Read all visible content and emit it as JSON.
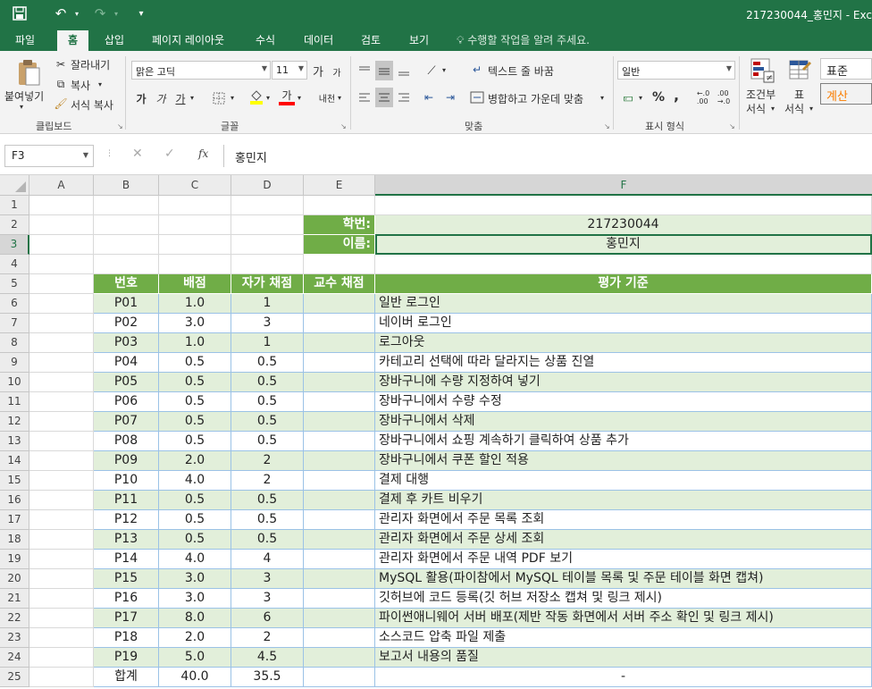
{
  "title_bar": {
    "doc_title": "217230044_홍민지 - Exc",
    "undo_label": "↶",
    "redo_label": "↷",
    "save_label": "💾",
    "customize_label": "▾"
  },
  "tabs": [
    "파일",
    "홈",
    "삽입",
    "페이지 레이아웃",
    "수식",
    "데이터",
    "검토",
    "보기"
  ],
  "tell_me": "수행할 작업을 알려 주세요.",
  "ribbon": {
    "clipboard": {
      "paste_label": "붙여넣기",
      "cut_label": "잘라내기",
      "copy_label": "복사",
      "format_painter_label": "서식 복사",
      "group_label": "클립보드"
    },
    "font": {
      "font_name": "맑은 고딕",
      "font_size": "11",
      "grow_label": "가",
      "shrink_label": "가",
      "bold_label": "가",
      "italic_label": "가",
      "underline_label": "가",
      "font_color_label": "가",
      "phonetic_label": "내천",
      "group_label": "글꼴"
    },
    "alignment": {
      "wrap_text_label": "텍스트 줄 바꿈",
      "merge_center_label": "병합하고 가운데 맞춤",
      "group_label": "맞춤"
    },
    "number": {
      "format_value": "일반",
      "percent_label": "%",
      "comma_label": ",",
      "group_label": "표시 형식"
    },
    "styles": {
      "conditional_label_1": "조건부",
      "conditional_label_2": "서식",
      "table_label_1": "표",
      "table_label_2": "서식",
      "normal_label": "표준",
      "calc_label": "계산"
    }
  },
  "formula_bar": {
    "name_box": "F3",
    "cancel_label": "✕",
    "enter_label": "✓",
    "fx_label": "fx",
    "formula_value": "홍민지"
  },
  "sheet": {
    "col_headers": [
      "A",
      "B",
      "C",
      "D",
      "E",
      "F"
    ],
    "row_numbers": [
      "1",
      "2",
      "3",
      "4",
      "5",
      "6",
      "7",
      "8",
      "9",
      "10",
      "11",
      "12",
      "13",
      "14",
      "15",
      "16",
      "17",
      "18",
      "19",
      "20",
      "21",
      "22",
      "23",
      "24",
      "25"
    ],
    "student_id_label": "학번:",
    "student_id_value": "217230044",
    "name_label": "이름:",
    "name_value": "홍민지",
    "table_headers": [
      "번호",
      "배점",
      "자가 채점",
      "교수 채점",
      "평가 기준"
    ],
    "rows": [
      [
        "P01",
        "1.0",
        "1",
        "",
        "일반 로그인"
      ],
      [
        "P02",
        "3.0",
        "3",
        "",
        "네이버 로그인"
      ],
      [
        "P03",
        "1.0",
        "1",
        "",
        "로그아웃"
      ],
      [
        "P04",
        "0.5",
        "0.5",
        "",
        "카테고리 선택에 따라 달라지는 상품 진열"
      ],
      [
        "P05",
        "0.5",
        "0.5",
        "",
        "장바구니에 수량 지정하여 넣기"
      ],
      [
        "P06",
        "0.5",
        "0.5",
        "",
        "장바구니에서 수량 수정"
      ],
      [
        "P07",
        "0.5",
        "0.5",
        "",
        "장바구니에서 삭제"
      ],
      [
        "P08",
        "0.5",
        "0.5",
        "",
        "장바구니에서 쇼핑 계속하기 클릭하여 상품 추가"
      ],
      [
        "P09",
        "2.0",
        "2",
        "",
        "장바구니에서 쿠폰 할인 적용"
      ],
      [
        "P10",
        "4.0",
        "2",
        "",
        "결제 대행"
      ],
      [
        "P11",
        "0.5",
        "0.5",
        "",
        "결제 후 카트 비우기"
      ],
      [
        "P12",
        "0.5",
        "0.5",
        "",
        "관리자 화면에서 주문 목록 조회"
      ],
      [
        "P13",
        "0.5",
        "0.5",
        "",
        "관리자 화면에서 주문 상세 조회"
      ],
      [
        "P14",
        "4.0",
        "4",
        "",
        "관리자 화면에서 주문 내역 PDF 보기"
      ],
      [
        "P15",
        "3.0",
        "3",
        "",
        "MySQL 활용(파이참에서 MySQL 테이블 목록 및 주문 테이블 화면 캡쳐)"
      ],
      [
        "P16",
        "3.0",
        "3",
        "",
        "깃허브에 코드 등록(깃 허브 저장소 캡쳐 및 링크 제시)"
      ],
      [
        "P17",
        "8.0",
        "6",
        "",
        "파이썬애니웨어 서버 배포(제반 작동 화면에서 서버 주소 확인 및 링크 제시)"
      ],
      [
        "P18",
        "2.0",
        "2",
        "",
        "소스코드 압축 파일 제출"
      ],
      [
        "P19",
        "5.0",
        "4.5",
        "",
        "보고서 내용의 품질"
      ]
    ],
    "total": [
      "합계",
      "40.0",
      "35.5",
      "",
      "-"
    ]
  },
  "colors": {
    "excel_green": "#217346",
    "header_green": "#70ad47",
    "row_tint": "#e2efda",
    "calc_orange": "#fa7d00"
  }
}
